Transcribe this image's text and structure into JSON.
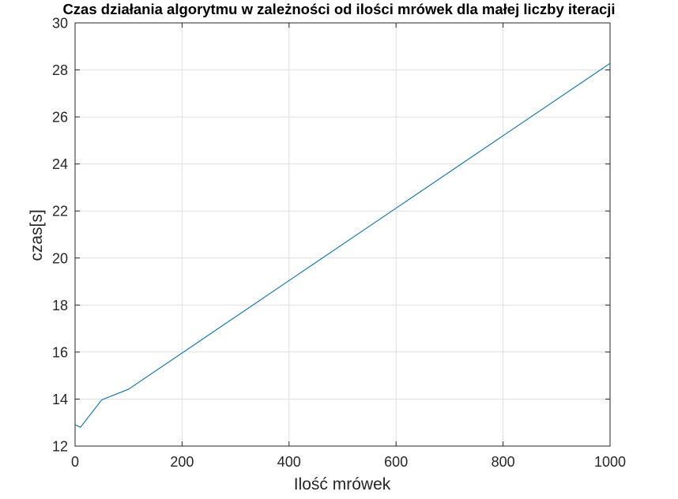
{
  "chart_data": {
    "type": "line",
    "title": "Czas działania algorytmu w zależności od ilości mrówek dla małej liczby iteracji",
    "xlabel": "Ilość mrówek",
    "ylabel": "czas[s]",
    "xlim": [
      0,
      1000
    ],
    "ylim": [
      12,
      30
    ],
    "xticks": [
      0,
      200,
      400,
      600,
      800,
      1000
    ],
    "yticks": [
      12,
      14,
      16,
      18,
      20,
      22,
      24,
      26,
      28,
      30
    ],
    "grid": true,
    "line_color": "#0072BD",
    "series": [
      {
        "x": [
          1,
          10,
          50,
          100,
          1000
        ],
        "y": [
          12.9,
          12.8,
          13.97,
          14.42,
          28.28
        ]
      }
    ]
  }
}
